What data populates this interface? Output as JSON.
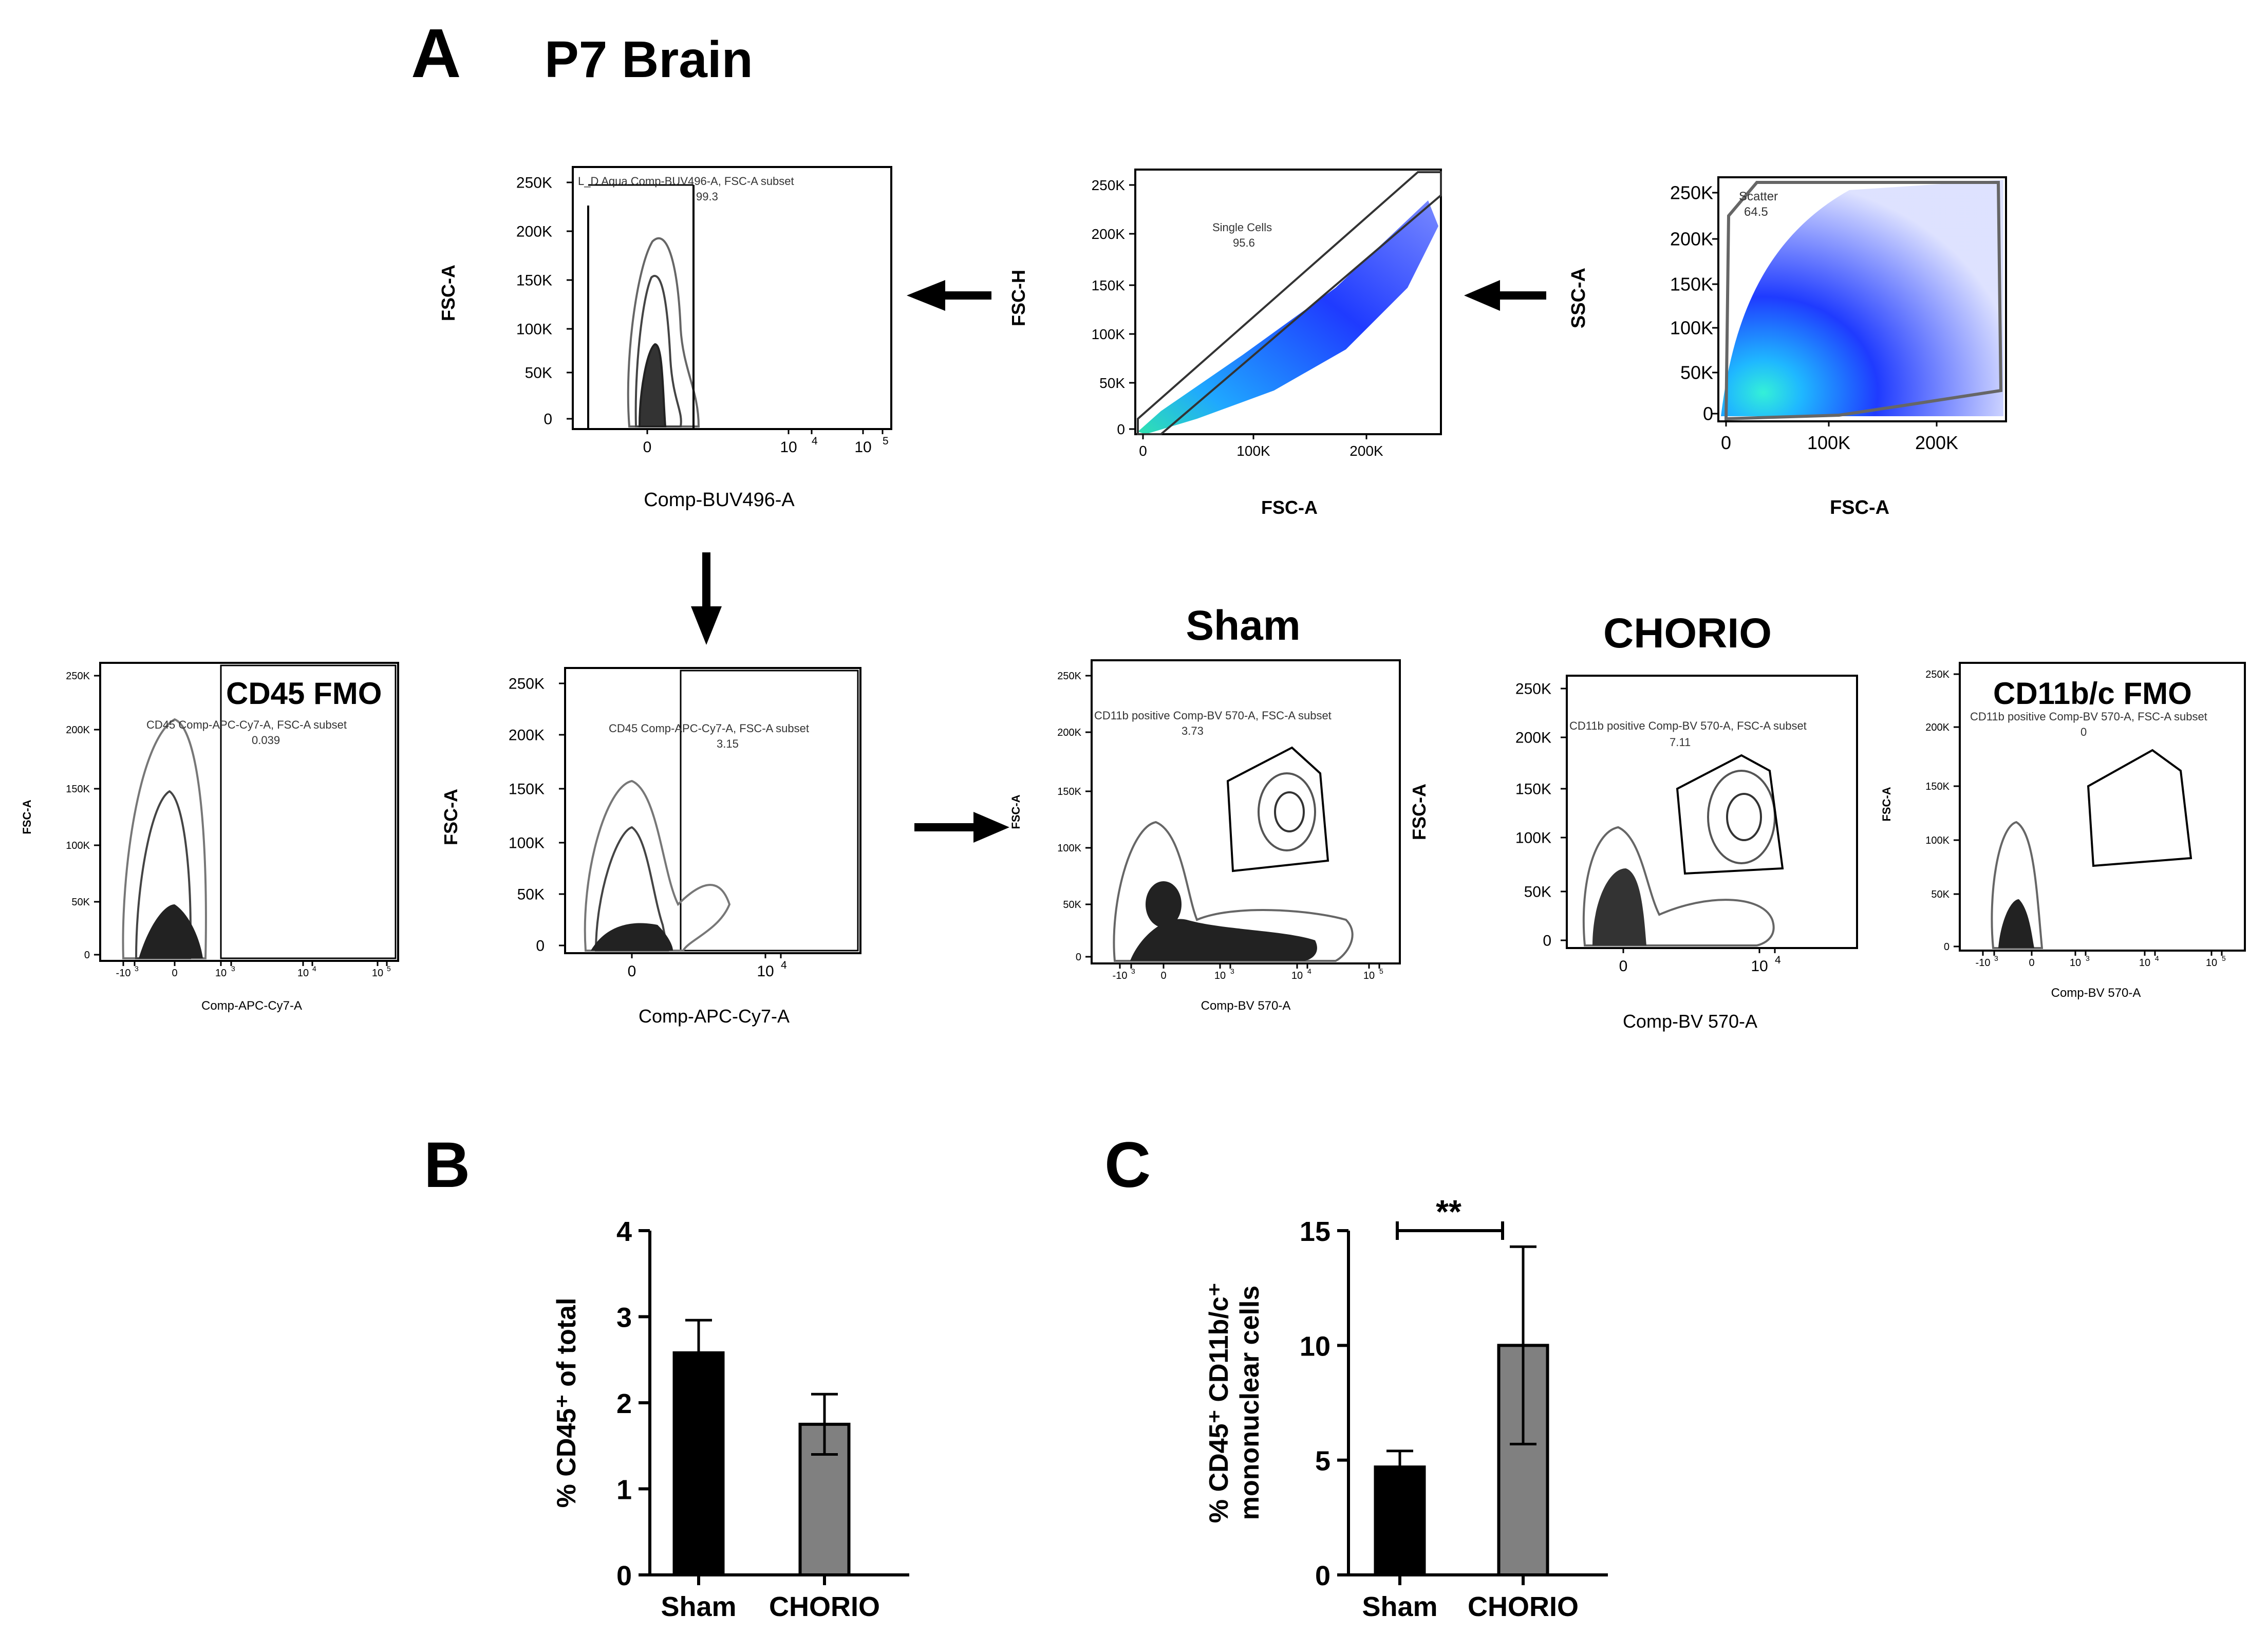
{
  "panel_labels": {
    "a": "A",
    "b": "B",
    "c": "C"
  },
  "figure_title": "P7 Brain",
  "group_titles": {
    "sham": "Sham",
    "chorio": "CHORIO"
  },
  "colors": {
    "black": "#000000",
    "gray_bar": "#808080",
    "contour": "#555555",
    "scatter_blue": "#1f3bff",
    "scatter_cyan": "#2fe3e0"
  },
  "chart_data": [
    {
      "id": "scatter-gate",
      "type": "scatter",
      "title": "",
      "xlabel": "FSC-A",
      "ylabel": "SSC-A",
      "x_ticks": [
        "0",
        "100K",
        "200K"
      ],
      "y_ticks": [
        "0",
        "50K",
        "100K",
        "150K",
        "200K",
        "250K"
      ],
      "xlim": [
        0,
        262000
      ],
      "ylim": [
        0,
        262000
      ],
      "gate": {
        "name": "Scatter",
        "value": "64.5"
      }
    },
    {
      "id": "single-cells-gate",
      "type": "scatter",
      "title": "",
      "xlabel": "FSC-A",
      "ylabel": "FSC-H",
      "x_ticks": [
        "0",
        "100K",
        "200K"
      ],
      "y_ticks": [
        "0",
        "50K",
        "100K",
        "150K",
        "200K",
        "250K"
      ],
      "xlim": [
        0,
        262000
      ],
      "ylim": [
        0,
        262000
      ],
      "gate": {
        "name": "Single Cells",
        "value": "95.6"
      }
    },
    {
      "id": "live-dead-gate",
      "type": "scatter",
      "title": "",
      "xlabel": "Comp-BUV496-A",
      "ylabel": "FSC-A",
      "x_ticks": [
        "0",
        "10",
        "4",
        "10",
        "5"
      ],
      "y_ticks": [
        "0",
        "50K",
        "100K",
        "150K",
        "200K",
        "250K"
      ],
      "gate": {
        "name": "L_D Aqua Comp-BUV496-A, FSC-A subset",
        "value": "99.3"
      }
    },
    {
      "id": "cd45-fmo",
      "type": "scatter",
      "title": "CD45 FMO",
      "xlabel": "Comp-APC-Cy7-A",
      "ylabel": "FSC-A",
      "x_ticks": [
        "-10",
        "3",
        "0",
        "10",
        "3",
        "10",
        "4",
        "10",
        "5"
      ],
      "y_ticks": [
        "0",
        "50K",
        "100K",
        "150K",
        "200K",
        "250K"
      ],
      "gate": {
        "name": "CD45 Comp-APC-Cy7-A, FSC-A subset",
        "value": "0.039"
      }
    },
    {
      "id": "cd45-gate",
      "type": "scatter",
      "title": "",
      "xlabel": "Comp-APC-Cy7-A",
      "ylabel": "FSC-A",
      "x_ticks": [
        "0",
        "10",
        "4"
      ],
      "y_ticks": [
        "0",
        "50K",
        "100K",
        "150K",
        "200K",
        "250K"
      ],
      "gate": {
        "name": "CD45 Comp-APC-Cy7-A, FSC-A subset",
        "value": "3.15"
      }
    },
    {
      "id": "cd11b-sham",
      "type": "scatter",
      "title": "Sham",
      "xlabel": "Comp-BV 570-A",
      "ylabel": "FSC-A",
      "x_ticks": [
        "-10",
        "3",
        "0",
        "10",
        "3",
        "10",
        "4",
        "10",
        "5"
      ],
      "y_ticks": [
        "0",
        "50K",
        "100K",
        "150K",
        "200K",
        "250K"
      ],
      "gate": {
        "name": "CD11b positive Comp-BV 570-A, FSC-A subset",
        "value": "3.73"
      }
    },
    {
      "id": "cd11b-chorio",
      "type": "scatter",
      "title": "CHORIO",
      "xlabel": "Comp-BV 570-A",
      "ylabel": "FSC-A",
      "x_ticks": [
        "0",
        "10",
        "4"
      ],
      "y_ticks": [
        "0",
        "50K",
        "100K",
        "150K",
        "200K",
        "250K"
      ],
      "gate": {
        "name": "CD11b positive Comp-BV 570-A, FSC-A subset",
        "value": "7.11"
      }
    },
    {
      "id": "cd11b-fmo",
      "type": "scatter",
      "title": "CD11b/c FMO",
      "xlabel": "Comp-BV 570-A",
      "ylabel": "FSC-A",
      "x_ticks": [
        "-10",
        "3",
        "0",
        "10",
        "3",
        "10",
        "4",
        "10",
        "5"
      ],
      "y_ticks": [
        "0",
        "50K",
        "100K",
        "150K",
        "200K",
        "250K"
      ],
      "gate": {
        "name": "CD11b positive Comp-BV 570-A, FSC-A subset",
        "value": "0"
      }
    },
    {
      "id": "bar-b",
      "type": "bar",
      "title": "",
      "categories": [
        "Sham",
        "CHORIO"
      ],
      "values": [
        2.58,
        1.75
      ],
      "errors": [
        0.38,
        0.35
      ],
      "ylabel": "% CD45⁺ of total",
      "xlabel": "",
      "ylim": [
        0,
        4
      ],
      "y_ticks": [
        "0",
        "1",
        "2",
        "3",
        "4"
      ]
    },
    {
      "id": "bar-c",
      "type": "bar",
      "title": "",
      "categories": [
        "Sham",
        "CHORIO"
      ],
      "values": [
        4.7,
        10.0
      ],
      "errors": [
        0.7,
        4.3
      ],
      "ylabel": "% CD45⁺ CD11b/c⁺",
      "ylabel2": "mononuclear cells",
      "xlabel": "",
      "ylim": [
        0,
        15
      ],
      "y_ticks": [
        "0",
        "5",
        "10",
        "15"
      ],
      "significance": "**"
    }
  ]
}
